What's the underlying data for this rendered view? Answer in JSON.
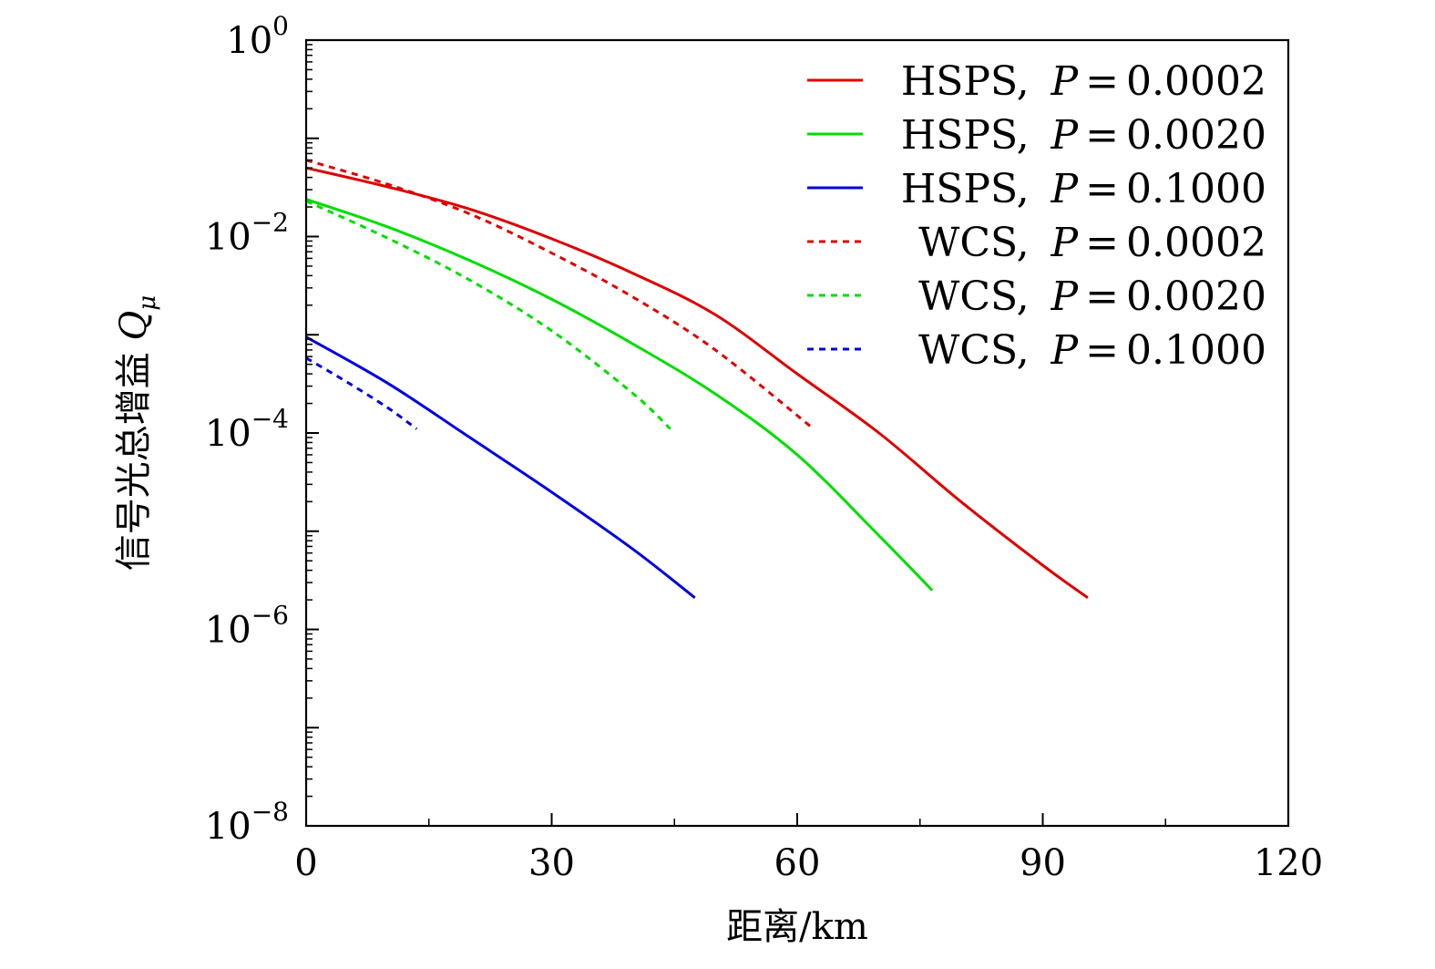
{
  "chart_data": {
    "type": "line",
    "title": "",
    "xlabel": "距离/km",
    "ylabel": "信号光总增益 Q_μ",
    "ylabel_main": "信号光总增益 ",
    "ylabel_symbol": "Q",
    "ylabel_subscript": "μ",
    "xlim": [
      0,
      120
    ],
    "ylim": [
      1e-08,
      1
    ],
    "yscale": "log",
    "x_ticks": [
      0,
      30,
      60,
      90,
      120
    ],
    "x_tick_labels": [
      "0",
      "30",
      "60",
      "90",
      "120"
    ],
    "y_ticks": [
      1e-08,
      1e-06,
      0.0001,
      0.01,
      1
    ],
    "y_tick_labels": [
      {
        "base": "10",
        "exp": "−8"
      },
      {
        "base": "10",
        "exp": "−6"
      },
      {
        "base": "10",
        "exp": "−4"
      },
      {
        "base": "10",
        "exp": "−2"
      },
      {
        "base": "10",
        "exp": "0"
      }
    ],
    "grid": false,
    "legend_position": "top-right",
    "series": [
      {
        "name": "HSPS, P = 0.0002",
        "label_prefix": "HSPS, ",
        "label_value": "0.0002",
        "color": "#dd0000",
        "style": "solid",
        "x": [
          0,
          10,
          20,
          30,
          40,
          50,
          60,
          70,
          80,
          90,
          95.5
        ],
        "y": [
          0.05,
          0.032,
          0.019,
          0.0095,
          0.0042,
          0.0016,
          0.0004,
          0.0001,
          2e-05,
          4.5e-06,
          2.1e-06
        ]
      },
      {
        "name": "HSPS, P = 0.0020",
        "label_prefix": "HSPS, ",
        "label_value": "0.0020",
        "color": "#00dd00",
        "style": "solid",
        "x": [
          0,
          10,
          20,
          30,
          40,
          50,
          60,
          70,
          76.5
        ],
        "y": [
          0.024,
          0.0125,
          0.0057,
          0.0023,
          0.0008,
          0.00025,
          6e-05,
          9e-06,
          2.5e-06
        ]
      },
      {
        "name": "HSPS, P = 0.1000",
        "label_prefix": "HSPS, ",
        "label_value": "0.1000",
        "color": "#0000dd",
        "style": "solid",
        "x": [
          0,
          10,
          20,
          30,
          40,
          47.5
        ],
        "y": [
          0.00095,
          0.00032,
          9e-05,
          2.5e-05,
          6.5e-06,
          2.1e-06
        ]
      },
      {
        "name": "WCS, P = 0.0002",
        "label_prefix": "WCS, ",
        "label_value": "0.0002",
        "color": "#dd0000",
        "style": "dashed",
        "x": [
          0,
          10,
          20,
          30,
          40,
          50,
          62
        ],
        "y": [
          0.06,
          0.034,
          0.017,
          0.0068,
          0.0024,
          0.0007,
          0.00011
        ]
      },
      {
        "name": "WCS, P = 0.0020",
        "label_prefix": "WCS, ",
        "label_value": "0.0020",
        "color": "#00dd00",
        "style": "dashed",
        "x": [
          0,
          10,
          20,
          30,
          40,
          44.5
        ],
        "y": [
          0.023,
          0.0096,
          0.0036,
          0.0011,
          0.00025,
          0.00011
        ]
      },
      {
        "name": "WCS, P = 0.1000",
        "label_prefix": "WCS, ",
        "label_value": "0.1000",
        "color": "#0000dd",
        "style": "dashed",
        "x": [
          0,
          5,
          10,
          13.5
        ],
        "y": [
          0.00058,
          0.00033,
          0.00018,
          0.00011
        ]
      }
    ]
  }
}
